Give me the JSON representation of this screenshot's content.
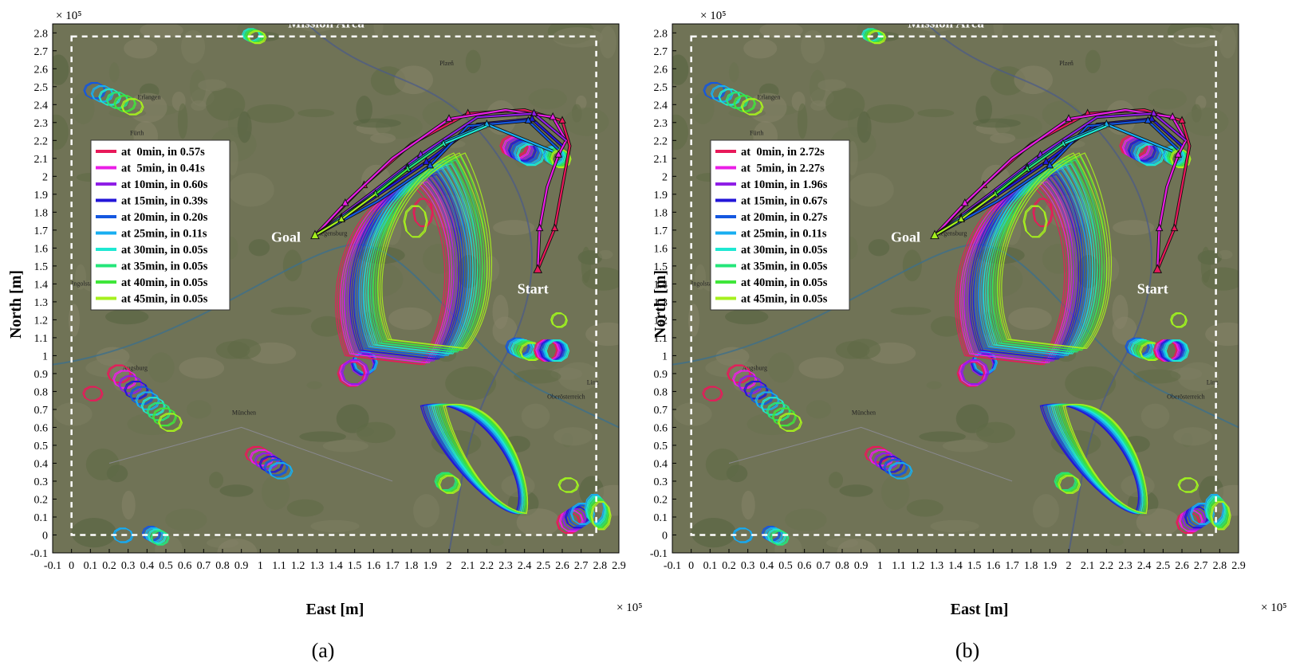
{
  "figure": {
    "panels": [
      {
        "label": "(a)",
        "axes_exponent": "× 10⁵",
        "xlabel": "East [m]",
        "ylabel": "North [m]",
        "annotations": {
          "mission_area": "Mission Area",
          "goal": "Goal",
          "start": "Start"
        },
        "map_labels": [
          "Plzeň",
          "Erlangen",
          "Fürth",
          "Regensburg",
          "Ingolstadt",
          "Augsburg",
          "München",
          "Linz",
          "Oberösterreich"
        ],
        "legend": [
          {
            "label": "at  0min, in 0.57s",
            "color": "#e8195a"
          },
          {
            "label": "at  5min, in 0.41s",
            "color": "#ea1ee6"
          },
          {
            "label": "at 10min, in 0.60s",
            "color": "#8f1ee6"
          },
          {
            "label": "at 15min, in 0.39s",
            "color": "#2316d8"
          },
          {
            "label": "at 20min, in 0.20s",
            "color": "#1457e0"
          },
          {
            "label": "at 25min, in 0.11s",
            "color": "#18aef0"
          },
          {
            "label": "at 30min, in 0.05s",
            "color": "#1ee8d2"
          },
          {
            "label": "at 35min, in 0.05s",
            "color": "#24e67a"
          },
          {
            "label": "at 40min, in 0.05s",
            "color": "#3fe63a"
          },
          {
            "label": "at 45min, in 0.05s",
            "color": "#a6f01e"
          }
        ]
      },
      {
        "label": "(b)",
        "axes_exponent": "× 10⁵",
        "xlabel": "East [m]",
        "ylabel": "North [m]",
        "annotations": {
          "mission_area": "Mission Area",
          "goal": "Goal",
          "start": "Start"
        },
        "map_labels": [
          "Plzeň",
          "Erlangen",
          "Fürth",
          "Regensburg",
          "Ingolstadt",
          "Augsburg",
          "München",
          "Linz",
          "Oberösterreich"
        ],
        "legend": [
          {
            "label": "at  0min, in 2.72s",
            "color": "#e8195a"
          },
          {
            "label": "at  5min, in 2.27s",
            "color": "#ea1ee6"
          },
          {
            "label": "at 10min, in 1.96s",
            "color": "#8f1ee6"
          },
          {
            "label": "at 15min, in 0.67s",
            "color": "#2316d8"
          },
          {
            "label": "at 20min, in 0.27s",
            "color": "#1457e0"
          },
          {
            "label": "at 25min, in 0.11s",
            "color": "#18aef0"
          },
          {
            "label": "at 30min, in 0.05s",
            "color": "#1ee8d2"
          },
          {
            "label": "at 35min, in 0.05s",
            "color": "#24e67a"
          },
          {
            "label": "at 40min, in 0.05s",
            "color": "#3fe63a"
          },
          {
            "label": "at 45min, in 0.05s",
            "color": "#a6f01e"
          }
        ]
      }
    ]
  },
  "chart_data": [
    {
      "type": "line",
      "panel": "a",
      "xlabel": "East [m]",
      "ylabel": "North [m]",
      "xlim": [
        -0.1,
        2.9
      ],
      "ylim": [
        -0.1,
        2.85
      ],
      "scale_factor": "1e5",
      "x_ticks": [
        "-0.1",
        "0",
        "0.1",
        "0.2",
        "0.3",
        "0.4",
        "0.5",
        "0.6",
        "0.7",
        "0.8",
        "0.9",
        "1",
        "1.1",
        "1.2",
        "1.3",
        "1.4",
        "1.5",
        "1.6",
        "1.7",
        "1.8",
        "1.9",
        "2",
        "2.1",
        "2.2",
        "2.3",
        "2.4",
        "2.5",
        "2.6",
        "2.7",
        "2.8",
        "2.9"
      ],
      "y_ticks": [
        "-0.1",
        "0",
        "0.1",
        "0.2",
        "0.3",
        "0.4",
        "0.5",
        "0.6",
        "0.7",
        "0.8",
        "0.9",
        "1",
        "1.1",
        "1.2",
        "1.3",
        "1.4",
        "1.5",
        "1.6",
        "1.7",
        "1.8",
        "1.9",
        "2",
        "2.1",
        "2.2",
        "2.3",
        "2.4",
        "2.5",
        "2.6",
        "2.7",
        "2.8"
      ],
      "grid": false,
      "legend_position": "upper-left",
      "mission_area": {
        "x": [
          0,
          2.78
        ],
        "y": [
          0,
          2.78
        ]
      },
      "goal": {
        "x": 1.29,
        "y": 1.67
      },
      "start": {
        "x": 2.47,
        "y": 1.48
      },
      "series": [
        {
          "name": "at  0min, in 0.57s",
          "x": [
            2.47,
            2.56,
            2.64,
            2.6,
            2.4,
            2.1,
            1.8,
            1.55,
            1.29
          ],
          "y": [
            1.48,
            1.71,
            2.17,
            2.31,
            2.37,
            2.35,
            2.18,
            1.95,
            1.67
          ]
        },
        {
          "name": "at  5min, in 0.41s",
          "x": [
            2.47,
            2.48,
            2.52,
            2.58,
            2.62,
            2.55,
            2.3,
            2.0,
            1.7,
            1.45,
            1.29
          ],
          "y": [
            1.48,
            1.71,
            1.94,
            2.12,
            2.2,
            2.33,
            2.37,
            2.32,
            2.1,
            1.85,
            1.67
          ]
        },
        {
          "name": "at 10min, in 0.60s",
          "x": [
            2.62,
            2.45,
            2.15,
            1.85,
            1.58,
            1.29
          ],
          "y": [
            2.2,
            2.35,
            2.33,
            2.12,
            1.9,
            1.67
          ]
        },
        {
          "name": "at 15min, in 0.39s",
          "x": [
            2.6,
            2.44,
            2.15,
            1.88,
            1.6,
            1.29
          ],
          "y": [
            2.17,
            2.32,
            2.29,
            2.08,
            1.88,
            1.67
          ]
        },
        {
          "name": "at 20min, in 0.20s",
          "x": [
            2.58,
            2.42,
            2.1,
            1.9,
            1.62,
            1.29
          ],
          "y": [
            2.15,
            2.31,
            2.28,
            2.06,
            1.86,
            1.67
          ]
        },
        {
          "name": "at 25min, in 0.11s",
          "x": [
            2.55,
            2.2,
            1.97,
            1.78,
            1.61,
            1.43,
            1.29
          ],
          "y": [
            2.14,
            2.29,
            2.19,
            2.05,
            1.91,
            1.77,
            1.67
          ]
        },
        {
          "name": "at 30min, in 0.05s",
          "x": [
            2.2,
            1.97,
            1.78,
            1.61,
            1.43,
            1.29
          ],
          "y": [
            2.28,
            2.18,
            2.04,
            1.9,
            1.77,
            1.67
          ]
        },
        {
          "name": "at 35min, in 0.05s",
          "x": [
            1.97,
            1.78,
            1.61,
            1.43,
            1.29
          ],
          "y": [
            2.18,
            2.04,
            1.9,
            1.76,
            1.67
          ]
        },
        {
          "name": "at 40min, in 0.05s",
          "x": [
            1.78,
            1.61,
            1.43,
            1.29
          ],
          "y": [
            2.04,
            1.9,
            1.76,
            1.67
          ]
        },
        {
          "name": "at 45min, in 0.05s",
          "x": [
            1.61,
            1.43,
            1.29
          ],
          "y": [
            1.9,
            1.76,
            1.67
          ]
        }
      ]
    },
    {
      "type": "line",
      "panel": "b",
      "xlabel": "East [m]",
      "ylabel": "North [m]",
      "xlim": [
        -0.1,
        2.9
      ],
      "ylim": [
        -0.1,
        2.85
      ],
      "scale_factor": "1e5",
      "x_ticks": [
        "-0.1",
        "0",
        "0.1",
        "0.2",
        "0.3",
        "0.4",
        "0.5",
        "0.6",
        "0.7",
        "0.8",
        "0.9",
        "1",
        "1.1",
        "1.2",
        "1.3",
        "1.4",
        "1.5",
        "1.6",
        "1.7",
        "1.8",
        "1.9",
        "2",
        "2.1",
        "2.2",
        "2.3",
        "2.4",
        "2.5",
        "2.6",
        "2.7",
        "2.8",
        "2.9"
      ],
      "y_ticks": [
        "-0.1",
        "0",
        "0.1",
        "0.2",
        "0.3",
        "0.4",
        "0.5",
        "0.6",
        "0.7",
        "0.8",
        "0.9",
        "1",
        "1.1",
        "1.2",
        "1.3",
        "1.4",
        "1.5",
        "1.6",
        "1.7",
        "1.8",
        "1.9",
        "2",
        "2.1",
        "2.2",
        "2.3",
        "2.4",
        "2.5",
        "2.6",
        "2.7",
        "2.8"
      ],
      "grid": false,
      "legend_position": "upper-left",
      "mission_area": {
        "x": [
          0,
          2.78
        ],
        "y": [
          0,
          2.78
        ]
      },
      "goal": {
        "x": 1.29,
        "y": 1.67
      },
      "start": {
        "x": 2.47,
        "y": 1.48
      },
      "series": [
        {
          "name": "at  0min, in 2.72s",
          "x": [
            2.47,
            2.56,
            2.64,
            2.6,
            2.4,
            2.1,
            1.8,
            1.55,
            1.29
          ],
          "y": [
            1.48,
            1.71,
            2.17,
            2.31,
            2.37,
            2.35,
            2.18,
            1.95,
            1.67
          ]
        },
        {
          "name": "at  5min, in 2.27s",
          "x": [
            2.47,
            2.48,
            2.52,
            2.58,
            2.62,
            2.55,
            2.3,
            2.0,
            1.7,
            1.45,
            1.29
          ],
          "y": [
            1.48,
            1.71,
            1.94,
            2.12,
            2.2,
            2.33,
            2.37,
            2.32,
            2.1,
            1.85,
            1.67
          ]
        },
        {
          "name": "at 10min, in 1.96s",
          "x": [
            2.62,
            2.45,
            2.15,
            1.85,
            1.58,
            1.29
          ],
          "y": [
            2.2,
            2.35,
            2.33,
            2.12,
            1.9,
            1.67
          ]
        },
        {
          "name": "at 15min, in 0.67s",
          "x": [
            2.6,
            2.44,
            2.15,
            1.88,
            1.6,
            1.29
          ],
          "y": [
            2.17,
            2.32,
            2.29,
            2.08,
            1.88,
            1.67
          ]
        },
        {
          "name": "at 20min, in 0.27s",
          "x": [
            2.58,
            2.42,
            2.1,
            1.9,
            1.62,
            1.29
          ],
          "y": [
            2.15,
            2.31,
            2.28,
            2.06,
            1.86,
            1.67
          ]
        },
        {
          "name": "at 25min, in 0.11s",
          "x": [
            2.55,
            2.2,
            1.97,
            1.78,
            1.61,
            1.43,
            1.29
          ],
          "y": [
            2.14,
            2.29,
            2.19,
            2.05,
            1.91,
            1.77,
            1.67
          ]
        },
        {
          "name": "at 30min, in 0.05s",
          "x": [
            2.2,
            1.97,
            1.78,
            1.61,
            1.43,
            1.29
          ],
          "y": [
            2.28,
            2.18,
            2.04,
            1.9,
            1.77,
            1.67
          ]
        },
        {
          "name": "at 35min, in 0.05s",
          "x": [
            1.97,
            1.78,
            1.61,
            1.43,
            1.29
          ],
          "y": [
            2.18,
            2.04,
            1.9,
            1.76,
            1.67
          ]
        },
        {
          "name": "at 40min, in 0.05s",
          "x": [
            1.78,
            1.61,
            1.43,
            1.29
          ],
          "y": [
            2.04,
            1.9,
            1.76,
            1.67
          ]
        },
        {
          "name": "at 45min, in 0.05s",
          "x": [
            1.61,
            1.43,
            1.29
          ],
          "y": [
            1.9,
            1.76,
            1.67
          ]
        }
      ]
    }
  ]
}
